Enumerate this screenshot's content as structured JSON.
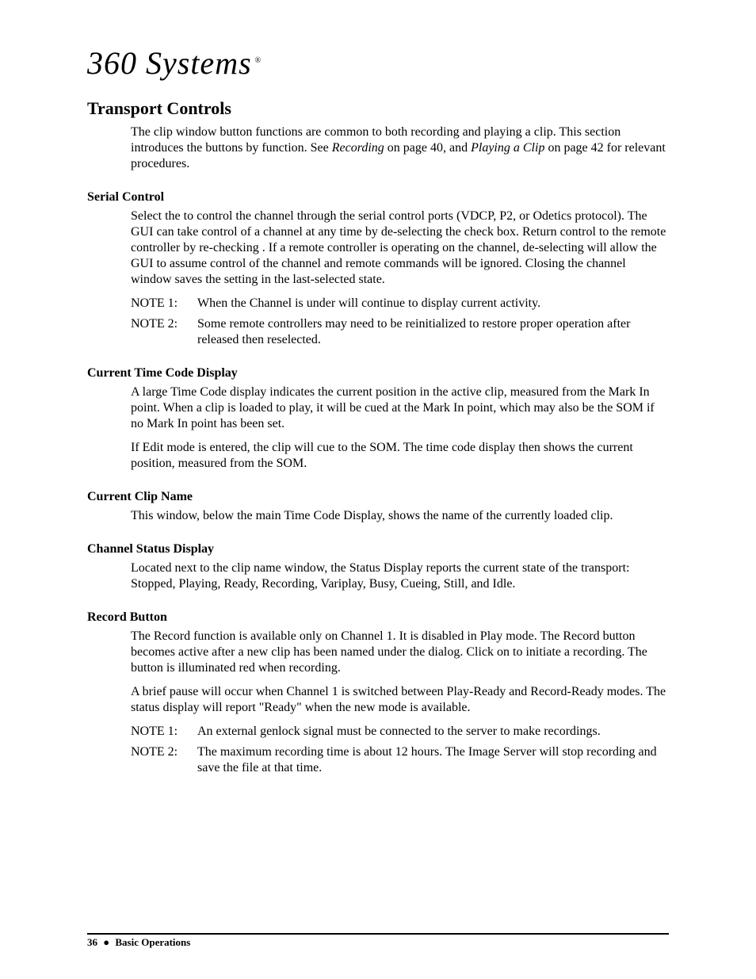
{
  "logo": {
    "text": "360 Systems",
    "trademark": "®"
  },
  "title": "Transport Controls",
  "intro": {
    "pre": "The clip window button functions are common to both recording and playing a clip.  This section introduces the buttons by function.  See ",
    "ref1": "Recording",
    "mid1": " on page 40, and ",
    "ref2": "Playing a Clip",
    "post": " on page 42 for relevant procedures."
  },
  "serial": {
    "heading": "Serial Control",
    "p1": "Select the                                                  to control the channel through the serial control ports (VDCP, P2, or Odetics protocol).  The GUI can take control of a channel at any time by de-selecting the                               check box.  Return control to the remote controller by re-checking                           .  If a remote controller is operating on the channel, de-selecting                            will allow the GUI to assume control of the channel and remote commands will be ignored.  Closing the channel window saves the                               setting in the last-selected state.",
    "note1_label": "NOTE 1:",
    "note1_text": "When the Channel is under                                                                            will continue to display current activity.",
    "note2_label": "NOTE 2:",
    "note2_text": "Some remote controllers may need to be reinitialized to restore proper operation after                               released then reselected."
  },
  "timecode": {
    "heading": "Current Time Code Display",
    "p1": "A large Time Code display indicates the current position in the active clip, measured from the Mark In point.  When a clip is loaded to play, it will be cued at the Mark In point, which may also be the SOM if no Mark In point has been set.",
    "p2": "If Edit mode is entered, the clip will cue to the SOM.  The time code display then shows the current position, measured from the SOM."
  },
  "clipname": {
    "heading": "Current Clip Name",
    "p1": "This window, below the main Time Code Display, shows the name of the currently loaded clip."
  },
  "status": {
    "heading": "Channel Status Display",
    "p1": "Located next to the clip name window, the Status Display reports the current state of the transport: Stopped, Playing, Ready, Recording, Variplay, Busy, Cueing, Still, and Idle."
  },
  "record": {
    "heading": "Record Button",
    "p1": "The Record function is available only on Channel 1.  It is disabled in Play mode.  The Record button becomes active after a new clip has been named under the                   dialog.  Click on          to initiate a recording.  The button is illuminated red when recording.",
    "p2": "A brief pause will occur when Channel 1 is switched between Play-Ready and Record-Ready modes.  The status display will report \"Ready\" when the new mode is available.",
    "note1_label": "NOTE 1:",
    "note1_text": "An external genlock signal must be connected to the server to make recordings.",
    "note2_label": "NOTE 2:",
    "note2_text": "The maximum recording time is about 12 hours.  The Image Server will stop recording and save the file at that time."
  },
  "footer": {
    "page": "36",
    "bullet": "●",
    "section": "Basic Operations"
  }
}
